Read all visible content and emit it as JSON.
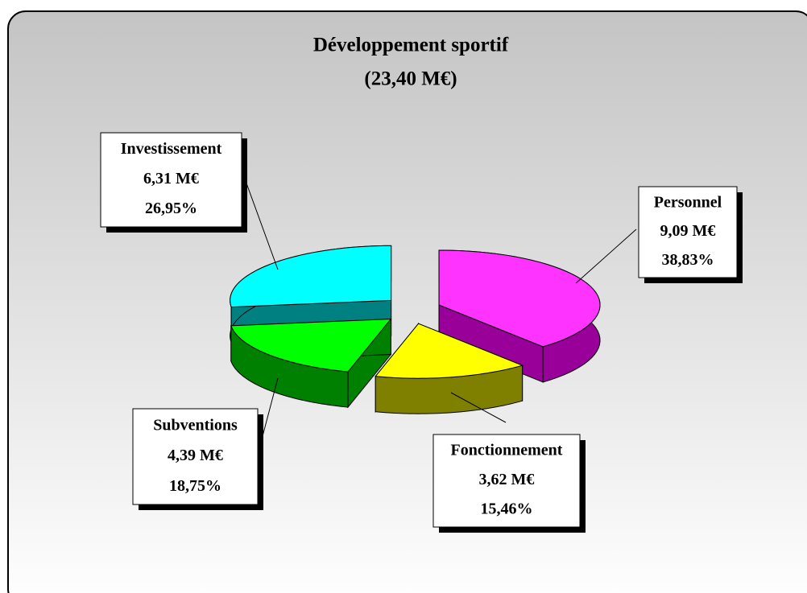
{
  "chart_data": {
    "type": "pie",
    "title": "Développement sportif",
    "subtitle": "(23,40 M€)",
    "categories": [
      "Personnel",
      "Fonctionnement",
      "Subventions",
      "Investissement"
    ],
    "values": [
      38.83,
      15.46,
      18.75,
      26.95
    ],
    "value_labels": [
      "38,83%",
      "15,46%",
      "18,75%",
      "26,95%"
    ],
    "amounts": [
      9.09,
      3.62,
      4.39,
      6.31
    ],
    "amount_labels": [
      "9,09 M€",
      "3,62 M€",
      "4,39 M€",
      "6,31 M€"
    ],
    "colors": [
      "#ff33ff",
      "#ffff00",
      "#00ff00",
      "#00ffff"
    ],
    "side_colors": [
      "#990099",
      "#808000",
      "#008000",
      "#008080"
    ]
  }
}
